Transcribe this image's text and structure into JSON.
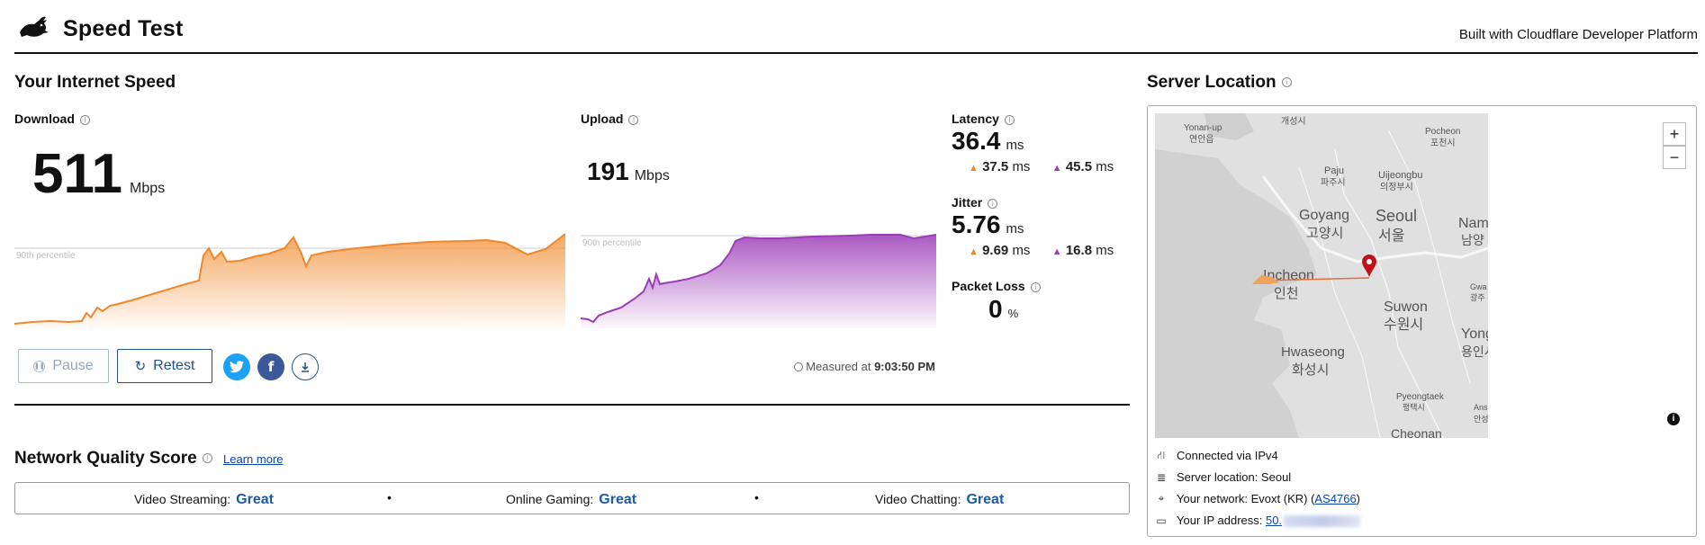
{
  "header": {
    "title": "Speed Test",
    "built_with": "Built with Cloudflare Developer Platform",
    "logo_icon": "rabbit-icon"
  },
  "speed": {
    "title": "Your Internet Speed",
    "download": {
      "label": "Download",
      "value": "511",
      "unit": "Mbps"
    },
    "upload": {
      "label": "Upload",
      "value": "191",
      "unit": "Mbps"
    },
    "percentile_label": "90th percentile",
    "latency": {
      "label": "Latency",
      "value": "36.4",
      "unit": "ms",
      "down": "37.5",
      "up": "45.5",
      "sub_unit": "ms"
    },
    "jitter": {
      "label": "Jitter",
      "value": "5.76",
      "unit": "ms",
      "down": "9.69",
      "up": "16.8",
      "sub_unit": "ms"
    },
    "packet_loss": {
      "label": "Packet Loss",
      "value": "0",
      "unit": "%"
    }
  },
  "actions": {
    "pause": "Pause",
    "retest": "Retest",
    "twitter_icon": "twitter-icon",
    "facebook_icon": "facebook-icon",
    "download_icon": "download-icon"
  },
  "measured": {
    "prefix": "Measured at",
    "time": "9:03:50 PM"
  },
  "nqs": {
    "title": "Network Quality Score",
    "learn_more": "Learn more",
    "items": [
      {
        "label": "Video Streaming:",
        "value": "Great"
      },
      {
        "label": "Online Gaming:",
        "value": "Great"
      },
      {
        "label": "Video Chatting:",
        "value": "Great"
      }
    ]
  },
  "server": {
    "title": "Server Location",
    "zoom_in": "+",
    "zoom_out": "−",
    "map_labels": {
      "yonan_en": "Yonan-up",
      "yonan_kr": "연안읍",
      "kaesong": "개성시",
      "pocheon_en": "Pocheon",
      "pocheon_kr": "포천시",
      "paju_en": "Paju",
      "paju_kr": "파주시",
      "uijeongbu_en": "Uijeongbu",
      "uijeongbu_kr": "의정부시",
      "goyang_en": "Goyang",
      "goyang_kr": "고양시",
      "seoul_en": "Seoul",
      "seoul_kr": "서울",
      "nam_en": "Nam",
      "nam_kr": "남양",
      "incheon_en": "Incheon",
      "incheon_kr": "인천",
      "suwon_en": "Suwon",
      "suwon_kr": "수원시",
      "gwa_en": "Gwa",
      "gwa_kr": "광주",
      "hwaseong_en": "Hwaseong",
      "hwaseong_kr": "화성시",
      "yong_en": "Yong",
      "yong_kr": "용인시",
      "pyeongtaek_en": "Pyeongtaek",
      "pyeongtaek_kr": "평택시",
      "ans_en": "Ans",
      "ans_kr": "안성",
      "cheonan": "Cheonan"
    },
    "connected": "Connected via IPv4",
    "location": "Server location: Seoul",
    "network_prefix": "Your network: Evoxt (KR) (",
    "network_asn": "AS4766",
    "network_suffix": ")",
    "ip_prefix": "Your IP address:",
    "ip_visible": "50."
  },
  "colors": {
    "download": "#f0882a",
    "upload": "#9c3cb8",
    "link": "#0b43a8",
    "accent": "#1d5aa6"
  }
}
